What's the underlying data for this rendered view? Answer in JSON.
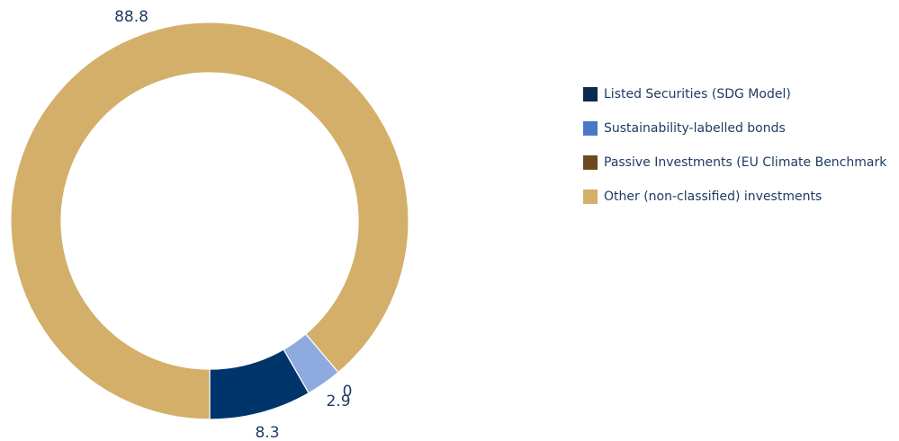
{
  "chart_data": {
    "type": "pie",
    "variant": "donut",
    "slices": [
      {
        "label": "Listed Securities (SDG Model)",
        "value": 8.3,
        "value_label": "8.3",
        "color": "#00356b"
      },
      {
        "label": "Sustainability-labelled bonds",
        "value": 2.9,
        "value_label": "2.9",
        "color": "#8eaade"
      },
      {
        "label": "Passive Investments (EU Climate Benchmark)",
        "value": 0,
        "value_label": "0",
        "color": "#6b4a1f"
      },
      {
        "label": "Other (non-classified) investments",
        "value": 88.8,
        "value_label": "88.8",
        "color": "#d3af6a"
      }
    ],
    "legend": {
      "placement": "right",
      "items": [
        {
          "label": "Listed Securities (SDG Model)",
          "color": "#0a2a4f"
        },
        {
          "label": "Sustainability-labelled bonds",
          "color": "#4a78c8"
        },
        {
          "label": "Passive Investments (EU Climate Benchmark",
          "color": "#6b4a1f"
        },
        {
          "label": "Other (non-classified) investments",
          "color": "#d3af6a"
        }
      ]
    }
  }
}
